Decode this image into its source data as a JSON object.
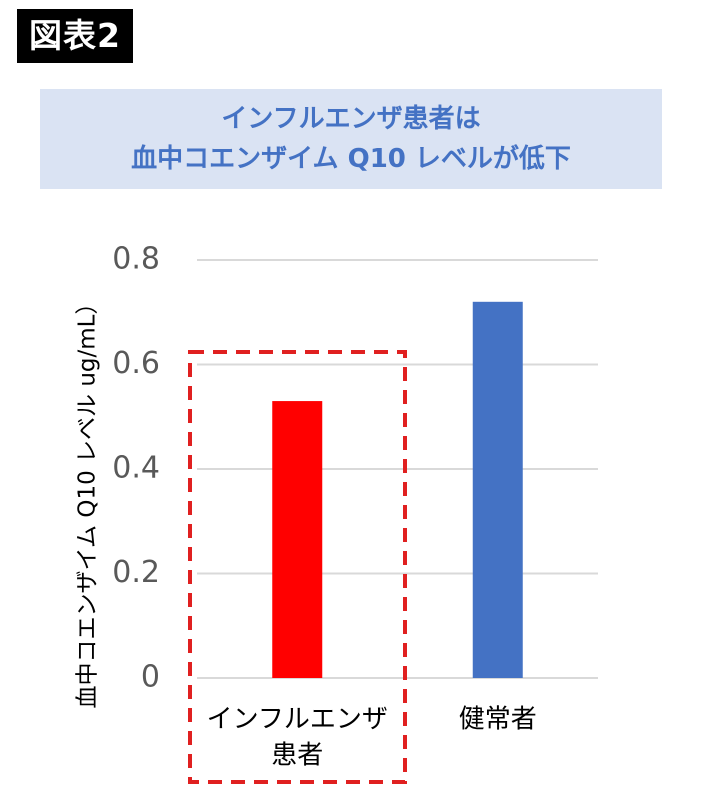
{
  "figure_label": "図表2",
  "title_lines": [
    "インフルエンザ患者は",
    "血中コエンザイム Q10 レベルが低下"
  ],
  "colors": {
    "title_bg": "#dae3f3",
    "title_text": "#4472c4",
    "highlight_box": "#e02020",
    "gridline": "#d9d9d9"
  },
  "chart_data": {
    "type": "bar",
    "title": "インフルエンザ患者は 血中コエンザイム Q10 レベルが低下",
    "ylabel": "血中コエンザイム Q10 レベル ug/mL）",
    "xlabel": "",
    "ylim": [
      0,
      0.8
    ],
    "yticks": [
      "0",
      "0.2",
      "0.4",
      "0.6",
      "0.8"
    ],
    "grid": true,
    "categories": [
      {
        "lines": [
          "インフルエンザ",
          "患者"
        ],
        "value": 0.53,
        "color": "#ff0000",
        "highlighted": true
      },
      {
        "lines": [
          "健常者"
        ],
        "value": 0.72,
        "color": "#4472c4",
        "highlighted": false
      }
    ]
  }
}
